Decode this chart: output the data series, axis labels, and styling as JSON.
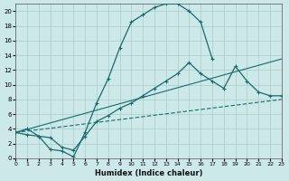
{
  "xlabel": "Humidex (Indice chaleur)",
  "bg_color": "#cce8e8",
  "grid_color": "#aacccc",
  "line_color": "#1a6b6b",
  "xlim": [
    0,
    23
  ],
  "ylim": [
    0,
    21
  ],
  "xticks": [
    0,
    1,
    2,
    3,
    4,
    5,
    6,
    7,
    8,
    9,
    10,
    11,
    12,
    13,
    14,
    15,
    16,
    17,
    18,
    19,
    20,
    21,
    22,
    23
  ],
  "yticks": [
    0,
    2,
    4,
    6,
    8,
    10,
    12,
    14,
    16,
    18,
    20
  ],
  "curve1_x": [
    0,
    1,
    2,
    3,
    4,
    5,
    6,
    7,
    8,
    9,
    10,
    11,
    12,
    13,
    14,
    15,
    16,
    17
  ],
  "curve1_y": [
    3.5,
    4.0,
    3.0,
    1.2,
    1.0,
    0.2,
    3.5,
    7.5,
    10.8,
    15.0,
    18.5,
    19.5,
    20.5,
    21.0,
    21.0,
    20.0,
    18.5,
    13.5
  ],
  "curve2_x": [
    0,
    1,
    2,
    3,
    4,
    5,
    6,
    7,
    8,
    9,
    10,
    11,
    12,
    13,
    14,
    15,
    16,
    17,
    18,
    19,
    20,
    21,
    22,
    23
  ],
  "curve2_y": [
    3.5,
    3.2,
    3.0,
    2.8,
    1.5,
    1.1,
    3.0,
    5.0,
    5.8,
    6.8,
    7.5,
    8.5,
    9.5,
    10.5,
    11.5,
    13.0,
    11.5,
    10.5,
    9.5,
    12.5,
    10.5,
    9.0,
    8.5,
    8.5
  ],
  "line3_x": [
    0,
    23
  ],
  "line3_y": [
    3.5,
    13.5
  ],
  "line4_x": [
    0,
    23
  ],
  "line4_y": [
    3.5,
    8.0
  ]
}
